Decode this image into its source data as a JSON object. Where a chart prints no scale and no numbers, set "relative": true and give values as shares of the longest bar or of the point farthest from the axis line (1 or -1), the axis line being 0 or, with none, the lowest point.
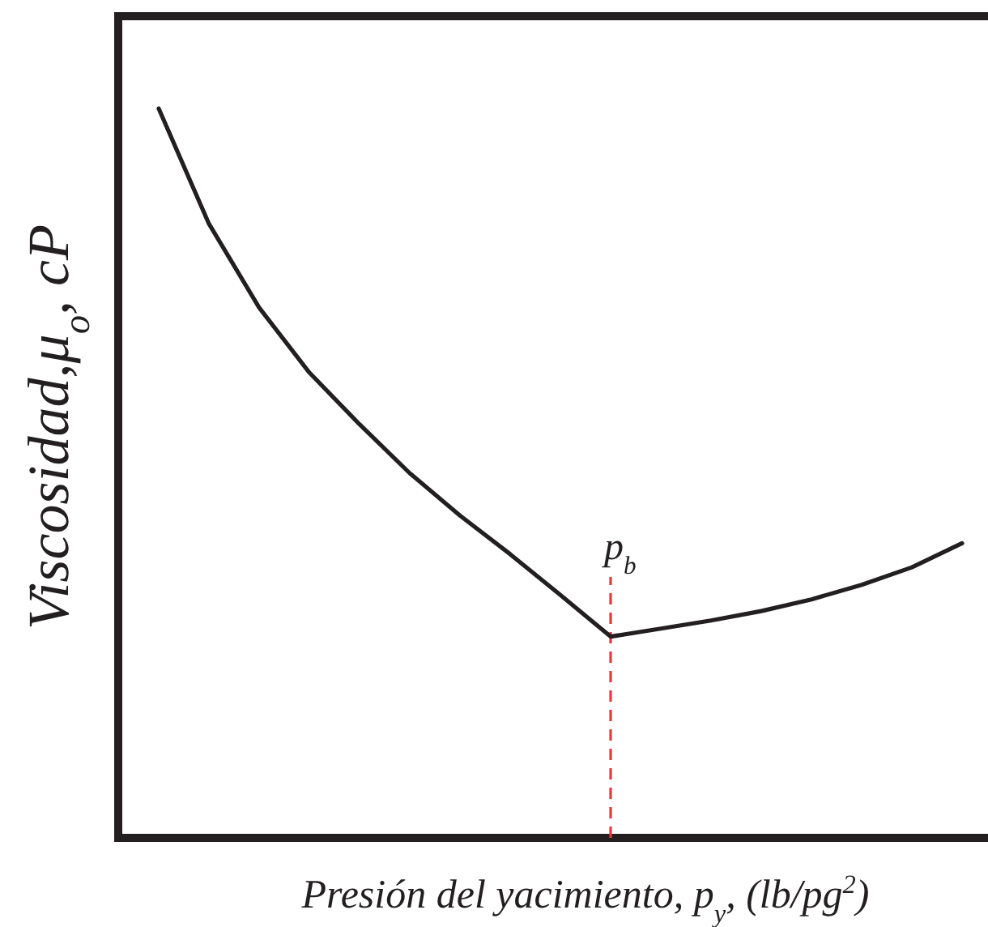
{
  "chart_data": {
    "type": "line",
    "relative": true,
    "xlabel": "Presión del yacimiento, p$_{y}$, (lb/pg$^{2}$)",
    "ylabel": "Viscosidad,μ$_{o}$, cP",
    "categories": [
      null,
      null,
      null,
      null,
      null,
      null,
      null,
      null,
      null,
      null,
      null,
      null,
      null,
      null,
      null,
      null,
      null
    ],
    "series": [
      {
        "color": "#231f20",
        "values": [
          1.0,
          0.842,
          0.727,
          0.638,
          0.567,
          0.5,
          0.442,
          0.389,
          0.333,
          0.276,
          0.287,
          0.298,
          0.311,
          0.327,
          0.347,
          0.371,
          0.404
        ]
      }
    ],
    "annotations": [
      "p$_{b}$"
    ],
    "tick_labels": false,
    "marker": "none",
    "line_style": "solid"
  }
}
